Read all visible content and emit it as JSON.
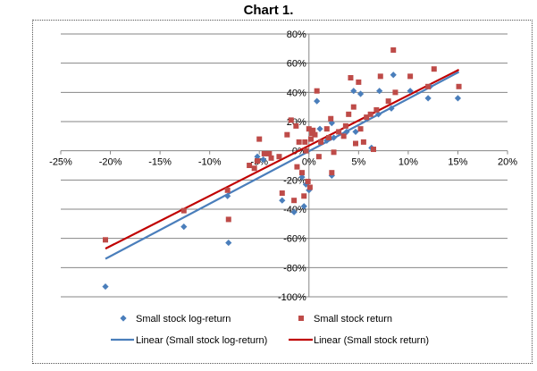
{
  "chart_data": {
    "type": "scatter",
    "title": "Chart 1.",
    "xlim": [
      -0.25,
      0.2
    ],
    "ylim": [
      -1.0,
      0.8
    ],
    "x_ticks": [
      -0.25,
      -0.2,
      -0.15,
      -0.1,
      -0.05,
      0.0,
      0.05,
      0.1,
      0.15,
      0.2
    ],
    "y_ticks": [
      -1.0,
      -0.8,
      -0.6,
      -0.4,
      -0.2,
      0.0,
      0.2,
      0.4,
      0.6,
      0.8
    ],
    "x_tick_labels": [
      "-25%",
      "-20%",
      "-15%",
      "-10%",
      "-5%",
      "0%",
      "5%",
      "10%",
      "15%",
      "20%"
    ],
    "y_tick_labels": [
      "-100%",
      "-80%",
      "-60%",
      "-40%",
      "-20%",
      "0%",
      "20%",
      "40%",
      "60%",
      "80%"
    ],
    "grid": "horizontal",
    "legend_position": "bottom",
    "series": [
      {
        "name": "Small stock log-return",
        "marker": "diamond",
        "color": "#4a7ebb",
        "points": [
          [
            -0.205,
            -0.93
          ],
          [
            -0.126,
            -0.52
          ],
          [
            -0.081,
            -0.63
          ],
          [
            -0.082,
            -0.31
          ],
          [
            -0.052,
            -0.04
          ],
          [
            -0.046,
            -0.06
          ],
          [
            -0.027,
            -0.34
          ],
          [
            -0.015,
            -0.42
          ],
          [
            -0.007,
            -0.18
          ],
          [
            -0.005,
            -0.38
          ],
          [
            -0.003,
            -0.23
          ],
          [
            0.0,
            -0.27
          ],
          [
            0.008,
            0.34
          ],
          [
            0.018,
            0.07
          ],
          [
            0.023,
            0.19
          ],
          [
            0.023,
            -0.17
          ],
          [
            0.045,
            0.41
          ],
          [
            0.047,
            0.13
          ],
          [
            0.052,
            0.39
          ],
          [
            0.058,
            0.22
          ],
          [
            0.07,
            0.25
          ],
          [
            0.071,
            0.41
          ],
          [
            0.083,
            0.29
          ],
          [
            0.085,
            0.52
          ],
          [
            0.102,
            0.41
          ],
          [
            0.12,
            0.36
          ],
          [
            0.122,
            0.44
          ],
          [
            0.15,
            0.36
          ],
          [
            0.011,
            0.15
          ],
          [
            0.025,
            0.09
          ],
          [
            0.038,
            0.13
          ],
          [
            0.063,
            0.02
          ]
        ]
      },
      {
        "name": "Small stock return",
        "marker": "square",
        "color": "#be4b48",
        "points": [
          [
            -0.205,
            -0.61
          ],
          [
            -0.126,
            -0.41
          ],
          [
            -0.081,
            -0.47
          ],
          [
            -0.082,
            -0.27
          ],
          [
            -0.06,
            -0.1
          ],
          [
            -0.055,
            -0.12
          ],
          [
            -0.052,
            -0.07
          ],
          [
            -0.05,
            0.08
          ],
          [
            -0.045,
            -0.02
          ],
          [
            -0.04,
            -0.02
          ],
          [
            -0.038,
            -0.05
          ],
          [
            -0.03,
            -0.04
          ],
          [
            -0.027,
            -0.29
          ],
          [
            -0.022,
            0.11
          ],
          [
            -0.018,
            0.21
          ],
          [
            -0.015,
            -0.34
          ],
          [
            -0.013,
            0.17
          ],
          [
            -0.012,
            -0.11
          ],
          [
            -0.01,
            0.06
          ],
          [
            -0.007,
            -0.15
          ],
          [
            -0.005,
            -0.31
          ],
          [
            -0.004,
            0.06
          ],
          [
            -0.003,
            0.0
          ],
          [
            -0.001,
            -0.21
          ],
          [
            0.0,
            0.15
          ],
          [
            0.001,
            -0.25
          ],
          [
            0.002,
            0.08
          ],
          [
            0.003,
            0.12
          ],
          [
            0.004,
            0.14
          ],
          [
            0.006,
            0.11
          ],
          [
            0.008,
            0.41
          ],
          [
            0.01,
            -0.04
          ],
          [
            0.012,
            0.06
          ],
          [
            0.018,
            0.15
          ],
          [
            0.02,
            0.09
          ],
          [
            0.022,
            0.22
          ],
          [
            0.023,
            -0.15
          ],
          [
            0.025,
            -0.01
          ],
          [
            0.03,
            0.13
          ],
          [
            0.035,
            0.1
          ],
          [
            0.037,
            0.17
          ],
          [
            0.04,
            0.25
          ],
          [
            0.042,
            0.5
          ],
          [
            0.045,
            0.3
          ],
          [
            0.047,
            0.05
          ],
          [
            0.05,
            0.47
          ],
          [
            0.052,
            0.15
          ],
          [
            0.055,
            0.06
          ],
          [
            0.058,
            0.23
          ],
          [
            0.062,
            0.25
          ],
          [
            0.065,
            0.01
          ],
          [
            0.068,
            0.28
          ],
          [
            0.072,
            0.51
          ],
          [
            0.08,
            0.34
          ],
          [
            0.085,
            0.69
          ],
          [
            0.087,
            0.4
          ],
          [
            0.102,
            0.51
          ],
          [
            0.12,
            0.44
          ],
          [
            0.126,
            0.56
          ],
          [
            0.151,
            0.44
          ]
        ]
      }
    ],
    "trendlines": [
      {
        "name": "Linear (Small stock log-return)",
        "color": "#4a7ebb",
        "points": [
          [
            -0.205,
            -0.74
          ],
          [
            0.151,
            0.54
          ]
        ]
      },
      {
        "name": "Linear (Small stock return)",
        "color": "#c00000",
        "points": [
          [
            -0.205,
            -0.67
          ],
          [
            0.151,
            0.555
          ]
        ]
      }
    ]
  }
}
